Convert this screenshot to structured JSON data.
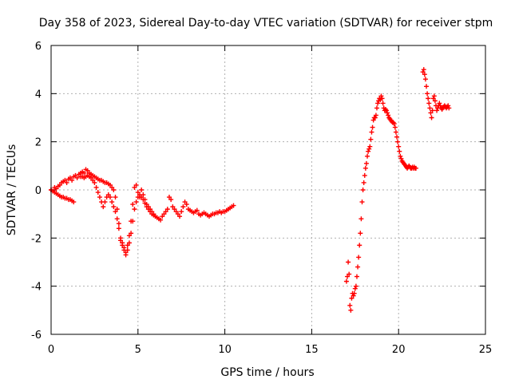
{
  "chart_data": {
    "type": "scatter",
    "title": "Day 358 of 2023, Sidereal Day-to-day VTEC variation (SDTVAR) for receiver stpm",
    "xlabel": "GPS time / hours",
    "ylabel": "SDTVAR / TECUs",
    "xlim": [
      0,
      25
    ],
    "ylim": [
      -6,
      6
    ],
    "xticks": [
      "0",
      "5",
      "10",
      "15",
      "20",
      "25"
    ],
    "yticks": [
      "-6",
      "-4",
      "-2",
      "0",
      "2",
      "4",
      "6"
    ],
    "grid": true,
    "marker": "+",
    "color": "#ff0000",
    "series": [
      {
        "x": [
          0.0,
          0.1,
          0.2,
          0.3,
          0.4,
          0.5,
          0.6,
          0.7,
          0.8,
          0.9,
          1.0,
          1.1,
          1.2,
          1.3,
          1.4,
          1.5,
          1.6,
          1.7,
          1.8,
          1.9,
          2.0,
          2.1,
          2.2,
          2.3,
          2.4,
          2.5,
          2.6,
          2.7,
          2.8,
          2.9,
          3.0,
          3.1,
          3.2,
          3.3,
          3.4,
          3.5,
          3.6,
          3.7,
          3.8,
          3.9,
          4.0,
          4.1,
          4.2,
          4.3,
          4.4,
          4.5,
          4.6,
          4.7,
          4.8,
          4.9,
          5.0,
          5.1,
          5.2,
          5.3,
          5.4,
          5.5,
          5.6,
          5.7,
          5.8,
          5.9,
          6.0,
          6.1,
          6.2,
          6.3,
          6.4,
          6.5,
          6.6,
          6.7,
          6.8,
          6.9,
          7.0,
          7.1,
          7.2,
          7.3,
          7.4,
          7.5,
          7.6,
          7.7,
          7.8,
          7.9,
          8.0,
          8.1,
          8.2,
          8.3,
          8.4,
          8.5,
          8.6,
          8.7,
          8.8,
          8.9,
          9.0,
          9.1,
          9.2,
          9.3,
          9.4,
          9.5,
          9.6,
          9.7,
          9.8,
          9.9,
          10.0,
          10.1,
          10.2,
          10.3,
          10.4,
          10.5
        ],
        "y": [
          0.0,
          -0.05,
          0.1,
          0.05,
          0.15,
          0.2,
          0.3,
          0.35,
          0.4,
          0.3,
          0.45,
          0.5,
          0.4,
          0.55,
          0.6,
          0.5,
          0.65,
          0.7,
          0.75,
          0.7,
          0.85,
          0.8,
          0.7,
          0.65,
          0.6,
          0.55,
          0.5,
          0.45,
          0.4,
          0.4,
          0.35,
          0.3,
          0.3,
          0.25,
          0.2,
          0.1,
          0.0,
          -0.3,
          -0.8,
          -1.4,
          -2.0,
          -2.2,
          -2.4,
          -2.6,
          -2.3,
          -1.9,
          -1.3,
          -0.6,
          0.1,
          0.2,
          -0.1,
          -0.3,
          0.0,
          -0.2,
          -0.4,
          -0.6,
          -0.7,
          -0.8,
          -0.9,
          -1.0,
          -1.1,
          -1.15,
          -1.2,
          -1.25,
          -1.1,
          -1.0,
          -0.9,
          -0.8,
          -0.3,
          -0.4,
          -0.7,
          -0.8,
          -0.9,
          -1.0,
          -1.1,
          -0.9,
          -0.7,
          -0.5,
          -0.6,
          -0.8,
          -0.85,
          -0.9,
          -0.95,
          -0.9,
          -0.85,
          -1.0,
          -1.05,
          -1.0,
          -0.95,
          -1.0,
          -1.05,
          -1.1,
          -1.05,
          -1.0,
          -1.0,
          -0.95,
          -0.95,
          -0.9,
          -0.95,
          -0.9,
          -0.9,
          -0.85,
          -0.8,
          -0.75,
          -0.7,
          -0.65
        ]
      },
      {
        "x": [
          0.0,
          0.1,
          0.2,
          0.3,
          0.4,
          0.5,
          0.6,
          0.7,
          0.8,
          0.9,
          1.0,
          1.1,
          1.2,
          1.3
        ],
        "y": [
          0.0,
          -0.05,
          -0.1,
          -0.15,
          -0.2,
          -0.25,
          -0.3,
          -0.3,
          -0.35,
          -0.35,
          -0.4,
          -0.4,
          -0.45,
          -0.5
        ]
      },
      {
        "x": [
          1.7,
          1.8,
          1.9,
          2.0,
          2.1,
          2.2,
          2.3,
          2.4,
          2.5,
          2.6,
          2.7,
          2.8,
          2.9,
          3.0,
          3.1,
          3.2,
          3.3,
          3.4,
          3.5,
          3.6,
          3.7,
          3.8,
          3.9,
          4.0,
          4.1,
          4.2,
          4.3,
          4.4,
          4.5,
          4.6,
          4.7,
          4.8,
          4.9,
          5.0,
          5.1,
          5.2,
          5.3,
          5.4,
          5.5,
          5.6,
          5.7,
          5.8,
          5.9,
          6.0
        ],
        "y": [
          0.55,
          0.55,
          0.5,
          0.55,
          0.6,
          0.55,
          0.5,
          0.4,
          0.3,
          0.1,
          -0.1,
          -0.3,
          -0.5,
          -0.7,
          -0.5,
          -0.3,
          -0.2,
          -0.3,
          -0.5,
          -0.7,
          -0.9,
          -1.2,
          -1.6,
          -2.1,
          -2.3,
          -2.5,
          -2.7,
          -2.5,
          -2.2,
          -1.8,
          -1.3,
          -0.8,
          -0.5,
          -0.3,
          -0.2,
          -0.3,
          -0.4,
          -0.55,
          -0.7,
          -0.8,
          -0.9,
          -1.0,
          -1.05,
          -1.1
        ]
      },
      {
        "x": [
          17.0,
          17.05,
          17.1,
          17.15,
          17.2,
          17.25,
          17.3,
          17.35,
          17.4,
          17.45,
          17.5,
          17.55,
          17.6,
          17.65,
          17.7,
          17.75,
          17.8,
          17.85,
          17.9,
          17.95,
          18.0,
          18.05,
          18.1,
          18.15,
          18.2,
          18.25,
          18.3,
          18.35,
          18.4,
          18.45,
          18.5,
          18.55,
          18.6,
          18.65,
          18.7,
          18.75,
          18.8,
          18.85,
          18.9,
          18.95,
          19.0,
          19.05,
          19.1,
          19.15,
          19.2,
          19.25,
          19.3,
          19.35,
          19.4,
          19.45,
          19.5,
          19.55,
          19.6,
          19.65,
          19.7,
          19.75,
          19.8,
          19.85,
          19.9,
          19.95,
          20.0,
          20.05,
          20.1,
          20.15,
          20.2,
          20.25,
          20.3,
          20.35,
          20.4,
          20.45,
          20.5,
          20.55,
          20.6,
          20.65,
          20.7,
          20.75,
          20.8,
          20.85,
          20.9,
          20.95,
          21.0
        ],
        "y": [
          -3.8,
          -3.6,
          -3.0,
          -3.5,
          -4.8,
          -5.0,
          -4.5,
          -4.3,
          -4.4,
          -4.3,
          -4.1,
          -4.0,
          -3.6,
          -3.2,
          -2.8,
          -2.3,
          -1.8,
          -1.2,
          -0.5,
          0.0,
          0.3,
          0.6,
          0.9,
          1.1,
          1.4,
          1.6,
          1.7,
          1.8,
          2.1,
          2.4,
          2.6,
          2.9,
          3.0,
          3.0,
          3.1,
          3.4,
          3.6,
          3.7,
          3.8,
          3.75,
          3.9,
          3.8,
          3.6,
          3.4,
          3.3,
          3.35,
          3.3,
          3.2,
          3.1,
          3.0,
          2.95,
          2.9,
          2.85,
          2.8,
          2.8,
          2.75,
          2.6,
          2.4,
          2.2,
          2.0,
          1.8,
          1.6,
          1.4,
          1.3,
          1.2,
          1.15,
          1.1,
          1.05,
          1.0,
          0.95,
          0.9,
          0.95,
          1.0,
          0.95,
          0.9,
          0.9,
          0.95,
          0.9,
          0.95,
          0.9,
          0.9
        ]
      },
      {
        "x": [
          21.4,
          21.45,
          21.5,
          21.55,
          21.6,
          21.65,
          21.7,
          21.75,
          21.8,
          21.85,
          21.9,
          21.95,
          22.0,
          22.05,
          22.1,
          22.15,
          22.2,
          22.25,
          22.3,
          22.35,
          22.4,
          22.45,
          22.5,
          22.55,
          22.6,
          22.65,
          22.7,
          22.75,
          22.8,
          22.85,
          22.9
        ],
        "y": [
          4.9,
          5.0,
          4.8,
          4.6,
          4.3,
          4.0,
          3.8,
          3.6,
          3.4,
          3.2,
          3.0,
          3.3,
          3.8,
          3.9,
          3.7,
          3.5,
          3.3,
          3.4,
          3.5,
          3.6,
          3.5,
          3.4,
          3.35,
          3.4,
          3.45,
          3.5,
          3.45,
          3.4,
          3.45,
          3.5,
          3.4
        ]
      }
    ]
  }
}
